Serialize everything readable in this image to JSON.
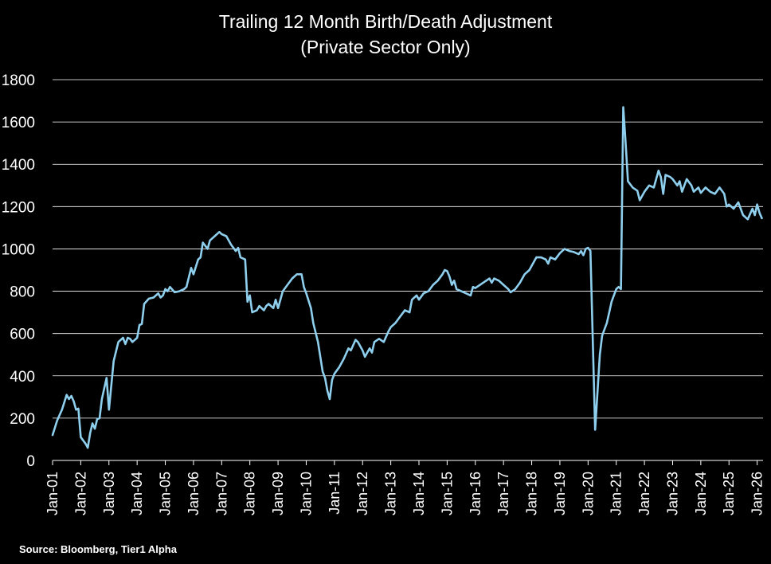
{
  "chart_data": {
    "type": "line",
    "title": "Trailing 12 Month Birth/Death Adjustment",
    "subtitle": "(Private Sector Only)",
    "ylim": [
      0,
      1800
    ],
    "yticks": [
      0,
      200,
      400,
      600,
      800,
      1000,
      1200,
      1400,
      1600,
      1800
    ],
    "xticks": [
      "Jan-01",
      "Jan-02",
      "Jan-03",
      "Jan-04",
      "Jan-05",
      "Jan-06",
      "Jan-07",
      "Jan-08",
      "Jan-09",
      "Jan-10",
      "Jan-11",
      "Jan-12",
      "Jan-13",
      "Jan-14",
      "Jan-15",
      "Jan-16",
      "Jan-17",
      "Jan-18",
      "Jan-19",
      "Jan-20",
      "Jan-21",
      "Jan-22",
      "Jan-23",
      "Jan-24",
      "Jan-25",
      "Jan-26"
    ],
    "grid": true,
    "line_color": "#8ecfee",
    "series": [
      {
        "points": [
          [
            "Jan-01",
            120
          ],
          [
            "Mar-01",
            190
          ],
          [
            "May-01",
            240
          ],
          [
            "Jul-01",
            310
          ],
          [
            "Aug-01",
            290
          ],
          [
            "Sep-01",
            305
          ],
          [
            "Oct-01",
            280
          ],
          [
            "Nov-01",
            240
          ],
          [
            "Dec-01",
            245
          ],
          [
            "Jan-02",
            110
          ],
          [
            "Mar-02",
            80
          ],
          [
            "Apr-02",
            60
          ],
          [
            "May-02",
            130
          ],
          [
            "Jun-02",
            175
          ],
          [
            "Jul-02",
            150
          ],
          [
            "Aug-02",
            195
          ],
          [
            "Sep-02",
            200
          ],
          [
            "Oct-02",
            290
          ],
          [
            "Dec-02",
            390
          ],
          [
            "Jan-03",
            240
          ],
          [
            "Mar-03",
            470
          ],
          [
            "May-03",
            560
          ],
          [
            "Jul-03",
            580
          ],
          [
            "Aug-03",
            550
          ],
          [
            "Sep-03",
            580
          ],
          [
            "Oct-03",
            575
          ],
          [
            "Nov-03",
            560
          ],
          [
            "Jan-04",
            580
          ],
          [
            "Feb-04",
            640
          ],
          [
            "Mar-04",
            645
          ],
          [
            "Apr-04",
            740
          ],
          [
            "Jun-04",
            765
          ],
          [
            "Aug-04",
            770
          ],
          [
            "Oct-04",
            790
          ],
          [
            "Nov-04",
            770
          ],
          [
            "Dec-04",
            780
          ],
          [
            "Jan-05",
            810
          ],
          [
            "Feb-05",
            800
          ],
          [
            "Mar-05",
            820
          ],
          [
            "May-05",
            795
          ],
          [
            "Jul-05",
            800
          ],
          [
            "Sep-05",
            810
          ],
          [
            "Oct-05",
            820
          ],
          [
            "Dec-05",
            910
          ],
          [
            "Jan-06",
            880
          ],
          [
            "Mar-06",
            950
          ],
          [
            "Apr-06",
            960
          ],
          [
            "May-06",
            1030
          ],
          [
            "Jul-06",
            1000
          ],
          [
            "Aug-06",
            1040
          ],
          [
            "Oct-06",
            1060
          ],
          [
            "Dec-06",
            1080
          ],
          [
            "Jan-07",
            1070
          ],
          [
            "Mar-07",
            1060
          ],
          [
            "May-07",
            1020
          ],
          [
            "Jul-07",
            990
          ],
          [
            "Aug-07",
            1005
          ],
          [
            "Sep-07",
            960
          ],
          [
            "Nov-07",
            950
          ],
          [
            "Dec-07",
            750
          ],
          [
            "Jan-08",
            780
          ],
          [
            "Feb-08",
            700
          ],
          [
            "Apr-08",
            710
          ],
          [
            "May-08",
            730
          ],
          [
            "Jul-08",
            710
          ],
          [
            "Aug-08",
            730
          ],
          [
            "Sep-08",
            740
          ],
          [
            "Nov-08",
            720
          ],
          [
            "Dec-08",
            760
          ],
          [
            "Jan-09",
            720
          ],
          [
            "Mar-09",
            800
          ],
          [
            "May-09",
            830
          ],
          [
            "Jul-09",
            860
          ],
          [
            "Sep-09",
            880
          ],
          [
            "Nov-09",
            880
          ],
          [
            "Dec-09",
            820
          ],
          [
            "Jan-10",
            790
          ],
          [
            "Mar-10",
            720
          ],
          [
            "Apr-10",
            650
          ],
          [
            "Jun-10",
            560
          ],
          [
            "Aug-10",
            420
          ],
          [
            "Sep-10",
            390
          ],
          [
            "Oct-10",
            330
          ],
          [
            "Nov-10",
            290
          ],
          [
            "Dec-10",
            380
          ],
          [
            "Jan-11",
            410
          ],
          [
            "Mar-11",
            440
          ],
          [
            "May-11",
            480
          ],
          [
            "Jul-11",
            530
          ],
          [
            "Aug-11",
            520
          ],
          [
            "Oct-11",
            570
          ],
          [
            "Nov-11",
            560
          ],
          [
            "Jan-12",
            520
          ],
          [
            "Feb-12",
            490
          ],
          [
            "Apr-12",
            530
          ],
          [
            "May-12",
            510
          ],
          [
            "Jun-12",
            560
          ],
          [
            "Aug-12",
            575
          ],
          [
            "Oct-12",
            560
          ],
          [
            "Dec-12",
            610
          ],
          [
            "Jan-13",
            630
          ],
          [
            "Mar-13",
            650
          ],
          [
            "May-13",
            680
          ],
          [
            "Jul-13",
            710
          ],
          [
            "Sep-13",
            700
          ],
          [
            "Oct-13",
            760
          ],
          [
            "Dec-13",
            780
          ],
          [
            "Jan-14",
            760
          ],
          [
            "Mar-14",
            790
          ],
          [
            "May-14",
            800
          ],
          [
            "Jul-14",
            830
          ],
          [
            "Sep-14",
            850
          ],
          [
            "Nov-14",
            880
          ],
          [
            "Dec-14",
            900
          ],
          [
            "Jan-15",
            895
          ],
          [
            "Feb-15",
            870
          ],
          [
            "Mar-15",
            830
          ],
          [
            "Apr-15",
            850
          ],
          [
            "May-15",
            810
          ],
          [
            "Jul-15",
            800
          ],
          [
            "Sep-15",
            790
          ],
          [
            "Nov-15",
            780
          ],
          [
            "Dec-15",
            820
          ],
          [
            "Jan-16",
            815
          ],
          [
            "Mar-16",
            830
          ],
          [
            "May-16",
            845
          ],
          [
            "Jul-16",
            860
          ],
          [
            "Aug-16",
            840
          ],
          [
            "Sep-16",
            860
          ],
          [
            "Nov-16",
            850
          ],
          [
            "Jan-17",
            830
          ],
          [
            "Mar-17",
            810
          ],
          [
            "Apr-17",
            795
          ],
          [
            "Jun-17",
            810
          ],
          [
            "Aug-17",
            840
          ],
          [
            "Oct-17",
            880
          ],
          [
            "Dec-17",
            900
          ],
          [
            "Jan-18",
            920
          ],
          [
            "Mar-18",
            960
          ],
          [
            "May-18",
            960
          ],
          [
            "Jul-18",
            950
          ],
          [
            "Aug-18",
            930
          ],
          [
            "Sep-18",
            960
          ],
          [
            "Nov-18",
            950
          ],
          [
            "Jan-19",
            980
          ],
          [
            "Mar-19",
            1000
          ],
          [
            "May-19",
            990
          ],
          [
            "Jul-19",
            985
          ],
          [
            "Sep-19",
            975
          ],
          [
            "Oct-19",
            990
          ],
          [
            "Nov-19",
            970
          ],
          [
            "Dec-19",
            1000
          ],
          [
            "Jan-20",
            1005
          ],
          [
            "Feb-20",
            990
          ],
          [
            "Apr-20",
            145
          ],
          [
            "Jun-20",
            500
          ],
          [
            "Jul-20",
            590
          ],
          [
            "Sep-20",
            650
          ],
          [
            "Oct-20",
            700
          ],
          [
            "Nov-20",
            750
          ],
          [
            "Jan-21",
            810
          ],
          [
            "Feb-21",
            820
          ],
          [
            "Mar-21",
            810
          ],
          [
            "Apr-21",
            1670
          ],
          [
            "May-21",
            1500
          ],
          [
            "Jun-21",
            1320
          ],
          [
            "Aug-21",
            1290
          ],
          [
            "Oct-21",
            1275
          ],
          [
            "Nov-21",
            1230
          ],
          [
            "Jan-22",
            1270
          ],
          [
            "Mar-22",
            1300
          ],
          [
            "May-22",
            1290
          ],
          [
            "Jul-22",
            1370
          ],
          [
            "Aug-22",
            1340
          ],
          [
            "Sep-22",
            1260
          ],
          [
            "Oct-22",
            1350
          ],
          [
            "Dec-22",
            1340
          ],
          [
            "Jan-23",
            1330
          ],
          [
            "Mar-23",
            1300
          ],
          [
            "Apr-23",
            1320
          ],
          [
            "May-23",
            1270
          ],
          [
            "Jul-23",
            1330
          ],
          [
            "Sep-23",
            1300
          ],
          [
            "Oct-23",
            1270
          ],
          [
            "Dec-23",
            1290
          ],
          [
            "Jan-24",
            1265
          ],
          [
            "Mar-24",
            1290
          ],
          [
            "May-24",
            1270
          ],
          [
            "Jul-24",
            1260
          ],
          [
            "Sep-24",
            1290
          ],
          [
            "Nov-24",
            1260
          ],
          [
            "Dec-24",
            1200
          ],
          [
            "Jan-25",
            1210
          ],
          [
            "Mar-25",
            1190
          ],
          [
            "May-25",
            1220
          ],
          [
            "Jul-25",
            1160
          ],
          [
            "Sep-25",
            1140
          ],
          [
            "Nov-25",
            1190
          ],
          [
            "Dec-25",
            1160
          ],
          [
            "Jan-26",
            1210
          ],
          [
            "Feb-26",
            1170
          ],
          [
            "Mar-26",
            1145
          ]
        ]
      }
    ]
  },
  "source_note": "Source: Bloomberg, Tier1 Alpha"
}
